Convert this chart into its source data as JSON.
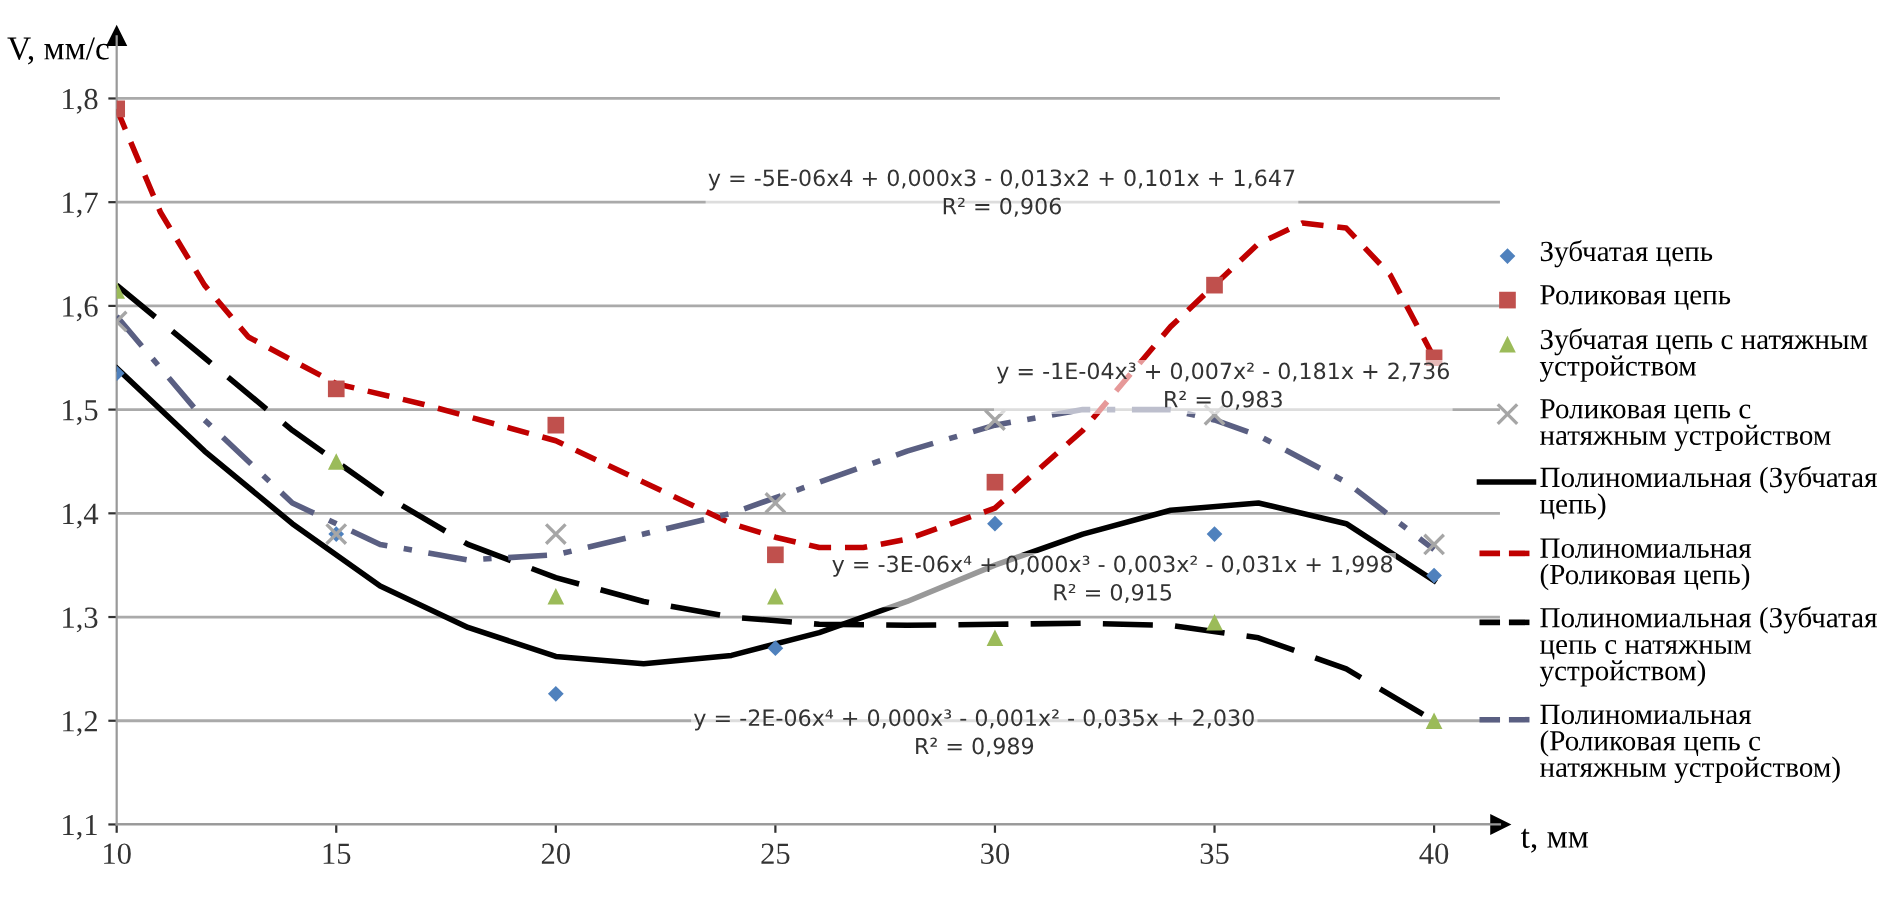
{
  "chart_data": {
    "type": "scatter",
    "xlabel": "t, мм",
    "ylabel": "V, мм/с",
    "xlim": [
      10,
      41.5
    ],
    "ylim": [
      1.1,
      1.86
    ],
    "xticks": [
      10,
      15,
      20,
      25,
      30,
      35,
      40
    ],
    "yticks": [
      {
        "value": 1.1,
        "label": "1,1"
      },
      {
        "value": 1.2,
        "label": "1,2"
      },
      {
        "value": 1.3,
        "label": "1,3"
      },
      {
        "value": 1.4,
        "label": "1,4"
      },
      {
        "value": 1.5,
        "label": "1,5"
      },
      {
        "value": 1.6,
        "label": "1,6"
      },
      {
        "value": 1.7,
        "label": "1,7"
      },
      {
        "value": 1.8,
        "label": "1,8"
      }
    ],
    "grid": "y",
    "legend": "right",
    "series": [
      {
        "name": "Зубчатая цепь",
        "marker": "diamond",
        "color": "#4f81bd",
        "x": [
          10,
          15,
          20,
          25,
          30,
          35,
          40
        ],
        "values": [
          1.535,
          1.38,
          1.226,
          1.27,
          1.39,
          1.38,
          1.34
        ]
      },
      {
        "name": "Роликовая цепь",
        "marker": "square",
        "color": "#c0504d",
        "x": [
          10,
          15,
          20,
          25,
          30,
          35,
          40
        ],
        "values": [
          1.79,
          1.52,
          1.485,
          1.36,
          1.43,
          1.62,
          1.55
        ]
      },
      {
        "name": "Зубчатая цепь с натяжным устройством",
        "marker": "triangle",
        "color": "#9bbb59",
        "x": [
          10,
          15,
          20,
          25,
          30,
          35,
          40
        ],
        "values": [
          1.615,
          1.45,
          1.32,
          1.32,
          1.28,
          1.295,
          1.2
        ]
      },
      {
        "name": "Роликовая цепь с натяжным устройством",
        "marker": "cross",
        "color": "#a6a6a6",
        "x": [
          10,
          15,
          20,
          25,
          30,
          35,
          40
        ],
        "values": [
          1.585,
          1.38,
          1.38,
          1.41,
          1.49,
          1.495,
          1.37
        ]
      },
      {
        "name": "Полиномиальная (Зубчатая цепь)",
        "type": "line",
        "line_style": "solid",
        "color": "#000000",
        "x": [
          10,
          12,
          14,
          16,
          18,
          20,
          22,
          24,
          26,
          28,
          30,
          32,
          34,
          36,
          38,
          40
        ],
        "values": [
          1.54,
          1.46,
          1.39,
          1.33,
          1.29,
          1.262,
          1.255,
          1.263,
          1.285,
          1.315,
          1.35,
          1.38,
          1.403,
          1.41,
          1.39,
          1.335
        ]
      },
      {
        "name": "Полиномиальная (Роликовая цепь)",
        "type": "line",
        "line_style": "dashed",
        "color": "#c00000",
        "x": [
          10,
          11,
          12,
          13,
          15,
          17,
          20,
          22,
          24,
          25,
          26,
          27,
          28,
          30,
          32,
          34,
          36,
          37,
          38,
          39,
          40
        ],
        "values": [
          1.79,
          1.69,
          1.62,
          1.57,
          1.525,
          1.505,
          1.47,
          1.43,
          1.39,
          1.377,
          1.367,
          1.367,
          1.375,
          1.405,
          1.48,
          1.58,
          1.66,
          1.68,
          1.675,
          1.63,
          1.55
        ]
      },
      {
        "name": "Полиномиальная (Зубчатая цепь с натяжным устройством)",
        "type": "line",
        "line_style": "longdash",
        "color": "#000000",
        "x": [
          10,
          12,
          14,
          16,
          18,
          20,
          22,
          24,
          26,
          28,
          30,
          32,
          34,
          36,
          38,
          40
        ],
        "values": [
          1.62,
          1.55,
          1.48,
          1.42,
          1.37,
          1.338,
          1.315,
          1.3,
          1.293,
          1.292,
          1.293,
          1.294,
          1.292,
          1.28,
          1.25,
          1.2
        ]
      },
      {
        "name": "Полиномиальная (Роликовая цепь с натяжным устройством)",
        "type": "line",
        "line_style": "dashdot",
        "color": "#5a5f82",
        "x": [
          10,
          12,
          14,
          16,
          18,
          20,
          22,
          24,
          26,
          28,
          30,
          32,
          34,
          35,
          36,
          38,
          40
        ],
        "values": [
          1.59,
          1.49,
          1.41,
          1.37,
          1.355,
          1.36,
          1.38,
          1.4,
          1.43,
          1.46,
          1.485,
          1.5,
          1.5,
          1.49,
          1.475,
          1.43,
          1.365
        ]
      }
    ],
    "annotations": [
      "y = -5E-06x4 + 0,000x3 - 0,013x2 + 0,101x + 1,647\nR² = 0,906",
      "y = -1E-04x³ + 0,007x² - 0,181x + 2,736\nR² = 0,983",
      "y = -3E-06x⁴ + 0,000x³ - 0,003x² - 0,031x + 1,998\nR² = 0,915",
      "y = -2E-06x⁴ + 0,000x³ - 0,001x² - 0,035x + 2,030\nR² = 0,989"
    ]
  }
}
